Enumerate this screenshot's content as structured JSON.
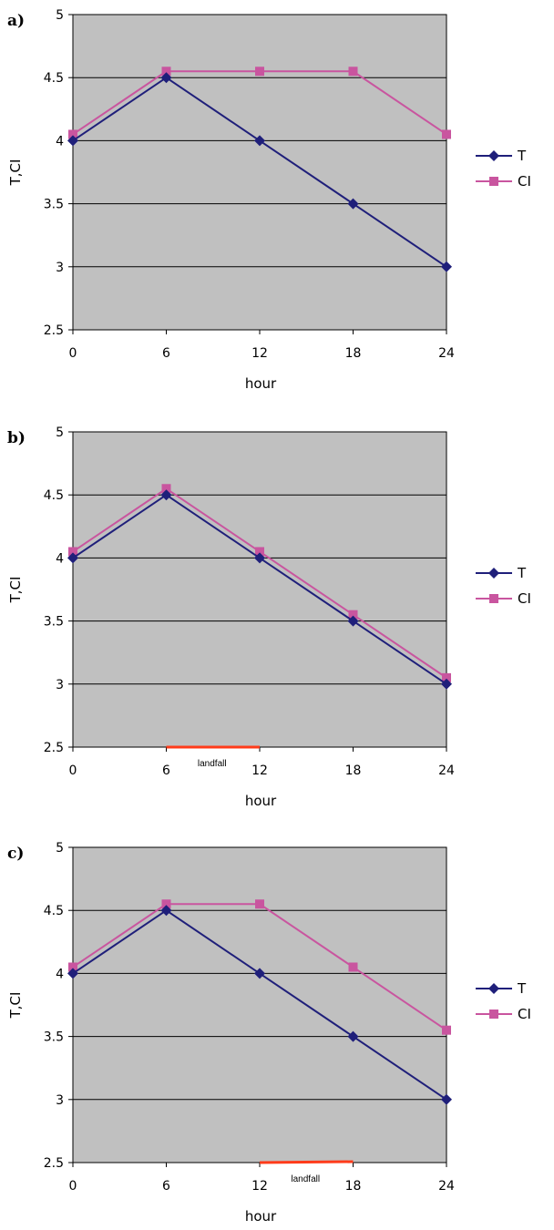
{
  "chart_data": [
    {
      "type": "line",
      "panel_label": "a)",
      "x": [
        0,
        6,
        12,
        18,
        24
      ],
      "xticks": [
        "0",
        "6",
        "12",
        "18",
        "24"
      ],
      "yticks": [
        "2.5",
        "3",
        "3.5",
        "4",
        "4.5",
        "5"
      ],
      "xlabel": "hour",
      "ylabel": "T,CI",
      "ylim": [
        2.5,
        5
      ],
      "grid": "horizontal",
      "legend": "right",
      "series": [
        {
          "name": "T",
          "values": [
            4.0,
            4.5,
            4.0,
            3.5,
            3.0
          ],
          "color": "#1f1f7a",
          "marker": "diamond"
        },
        {
          "name": "CI",
          "values": [
            4.05,
            4.55,
            4.55,
            4.55,
            4.05
          ],
          "color": "#c9559f",
          "marker": "square"
        }
      ],
      "annotation": null
    },
    {
      "type": "line",
      "panel_label": "b)",
      "x": [
        0,
        6,
        12,
        18,
        24
      ],
      "xticks": [
        "0",
        "6",
        "12",
        "18",
        "24"
      ],
      "yticks": [
        "2.5",
        "3",
        "3.5",
        "4",
        "4.5",
        "5"
      ],
      "xlabel": "hour",
      "ylabel": "T,CI",
      "ylim": [
        2.5,
        5
      ],
      "grid": "horizontal",
      "legend": "right",
      "series": [
        {
          "name": "T",
          "values": [
            4.0,
            4.5,
            4.0,
            3.5,
            3.0
          ],
          "color": "#1f1f7a",
          "marker": "diamond"
        },
        {
          "name": "CI",
          "values": [
            4.05,
            4.55,
            4.05,
            3.55,
            3.05
          ],
          "color": "#c9559f",
          "marker": "square"
        }
      ],
      "annotation": {
        "text": "landfall",
        "from": 6,
        "to": 12,
        "color": "#ff3b1a"
      }
    },
    {
      "type": "line",
      "panel_label": "c)",
      "x": [
        0,
        6,
        12,
        18,
        24
      ],
      "xticks": [
        "0",
        "6",
        "12",
        "18",
        "24"
      ],
      "yticks": [
        "2.5",
        "3",
        "3.5",
        "4",
        "4.5",
        "5"
      ],
      "xlabel": "hour",
      "ylabel": "T,CI",
      "ylim": [
        2.5,
        5
      ],
      "grid": "horizontal",
      "legend": "right",
      "series": [
        {
          "name": "T",
          "values": [
            4.0,
            4.5,
            4.0,
            3.5,
            3.0
          ],
          "color": "#1f1f7a",
          "marker": "diamond"
        },
        {
          "name": "CI",
          "values": [
            4.05,
            4.55,
            4.55,
            4.05,
            3.55
          ],
          "color": "#c9559f",
          "marker": "square"
        }
      ],
      "annotation": {
        "text": "landfall",
        "from": 12,
        "to": 18,
        "color": "#ff3b1a"
      }
    }
  ],
  "colors": {
    "plot_background": "#c0c0c0",
    "gridline": "#000000"
  }
}
